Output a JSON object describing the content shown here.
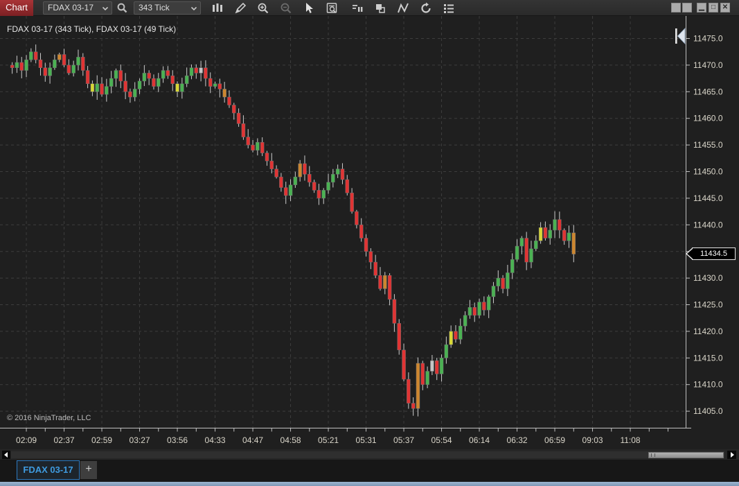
{
  "titlebar": {
    "title_button": "Chart",
    "instrument_value": "FDAX 03-17",
    "interval_value": "343 Tick",
    "icons": [
      "chart-style-icon",
      "draw-icon",
      "zoom-in-icon",
      "zoom-out-icon",
      "cursor-icon",
      "chart-trader-icon",
      "data-series-icon",
      "objects-icon",
      "indicators-icon",
      "reload-icon",
      "properties-icon"
    ],
    "window_buttons": [
      "float",
      "dock",
      "minimize",
      "maximize",
      "close"
    ]
  },
  "chart": {
    "series_label": "FDAX 03-17 (343 Tick), FDAX 03-17 (49 Tick)",
    "copyright": "© 2016 NinjaTrader, LLC",
    "last_price_label": "11434.5"
  },
  "chart_data": {
    "type": "candlestick",
    "title": "FDAX 03-17 (343 Tick), FDAX 03-17 (49 Tick)",
    "ylim": [
      11403,
      11477
    ],
    "y_ticks": [
      11475,
      11470,
      11465,
      11460,
      11455,
      11450,
      11445,
      11440,
      11435,
      11430,
      11425,
      11420,
      11415,
      11410,
      11405
    ],
    "y_tick_label_hidden_behind_badge": 11435,
    "y_tick_format_decimals": 1,
    "x_labels": [
      "02:09",
      "02:37",
      "02:59",
      "03:27",
      "03:56",
      "04:33",
      "04:47",
      "04:58",
      "05:21",
      "05:31",
      "05:37",
      "05:54",
      "06:14",
      "06:32",
      "06:59",
      "09:03",
      "11:08"
    ],
    "first_label_bar_index": 3,
    "label_every_n_bars": 8,
    "grid": "dashed",
    "last_price": 11434.5,
    "closes": [
      11469.5,
      11470.5,
      11469.0,
      11471.0,
      11472.5,
      11471.0,
      11469.5,
      11468.0,
      11469.5,
      11471.0,
      11472.0,
      11470.0,
      11468.5,
      11470.0,
      11471.5,
      11469.0,
      11466.5,
      11465.0,
      11466.5,
      11464.5,
      11466.0,
      11467.5,
      11469.0,
      11467.0,
      11465.0,
      11464.0,
      11465.5,
      11467.0,
      11468.5,
      11467.5,
      11466.0,
      11467.5,
      11469.0,
      11468.0,
      11466.5,
      11465.0,
      11466.5,
      11468.0,
      11469.5,
      11468.5,
      11469.5,
      11467.5,
      11466.0,
      11466.5,
      11465.5,
      11464.0,
      11462.5,
      11461.0,
      11459.0,
      11456.5,
      11455.0,
      11454.0,
      11455.5,
      11453.5,
      11452.0,
      11450.5,
      11449.0,
      11447.0,
      11445.5,
      11447.5,
      11449.0,
      11451.5,
      11449.5,
      11448.0,
      11446.5,
      11445.0,
      11446.5,
      11448.0,
      11449.5,
      11450.5,
      11448.5,
      11446.0,
      11442.5,
      11440.0,
      11437.5,
      11435.0,
      11433.0,
      11430.5,
      11428.0,
      11430.5,
      11426.0,
      11421.5,
      11416.5,
      11411.0,
      11406.5,
      11405.5,
      11414.0,
      11410.0,
      11412.5,
      11414.5,
      11412.0,
      11415.0,
      11417.5,
      11420.0,
      11418.5,
      11421.0,
      11423.0,
      11424.5,
      11423.0,
      11425.5,
      11424.0,
      11426.5,
      11428.5,
      11430.0,
      11428.0,
      11431.0,
      11433.5,
      11436.0,
      11437.5,
      11433.0,
      11435.5,
      11437.0,
      11439.5,
      11437.5,
      11439.0,
      11441.0,
      11439.0,
      11437.0,
      11438.5,
      11434.5
    ],
    "special_body_colors": {
      "10": "#cd862f",
      "17": "#d8d835",
      "35": "#d8d835",
      "40": "#c6c6c6",
      "45": "#cd862f",
      "61": "#cd862f",
      "79": "#cd862f",
      "86": "#cd862f",
      "89": "#c6c6c6",
      "93": "#d8d835",
      "112": "#d8d835",
      "119": "#cd862f"
    },
    "colors": {
      "up": "#4bb253",
      "down": "#e03434",
      "wick": "#cdcdcd",
      "grid": "#3d3d3d",
      "background": "#1f1f1f",
      "axis_line": "#c0c0c0",
      "axis_text": "#dad6ca"
    }
  },
  "tabs": {
    "active_label": "FDAX 03-17",
    "add_label": "+"
  }
}
